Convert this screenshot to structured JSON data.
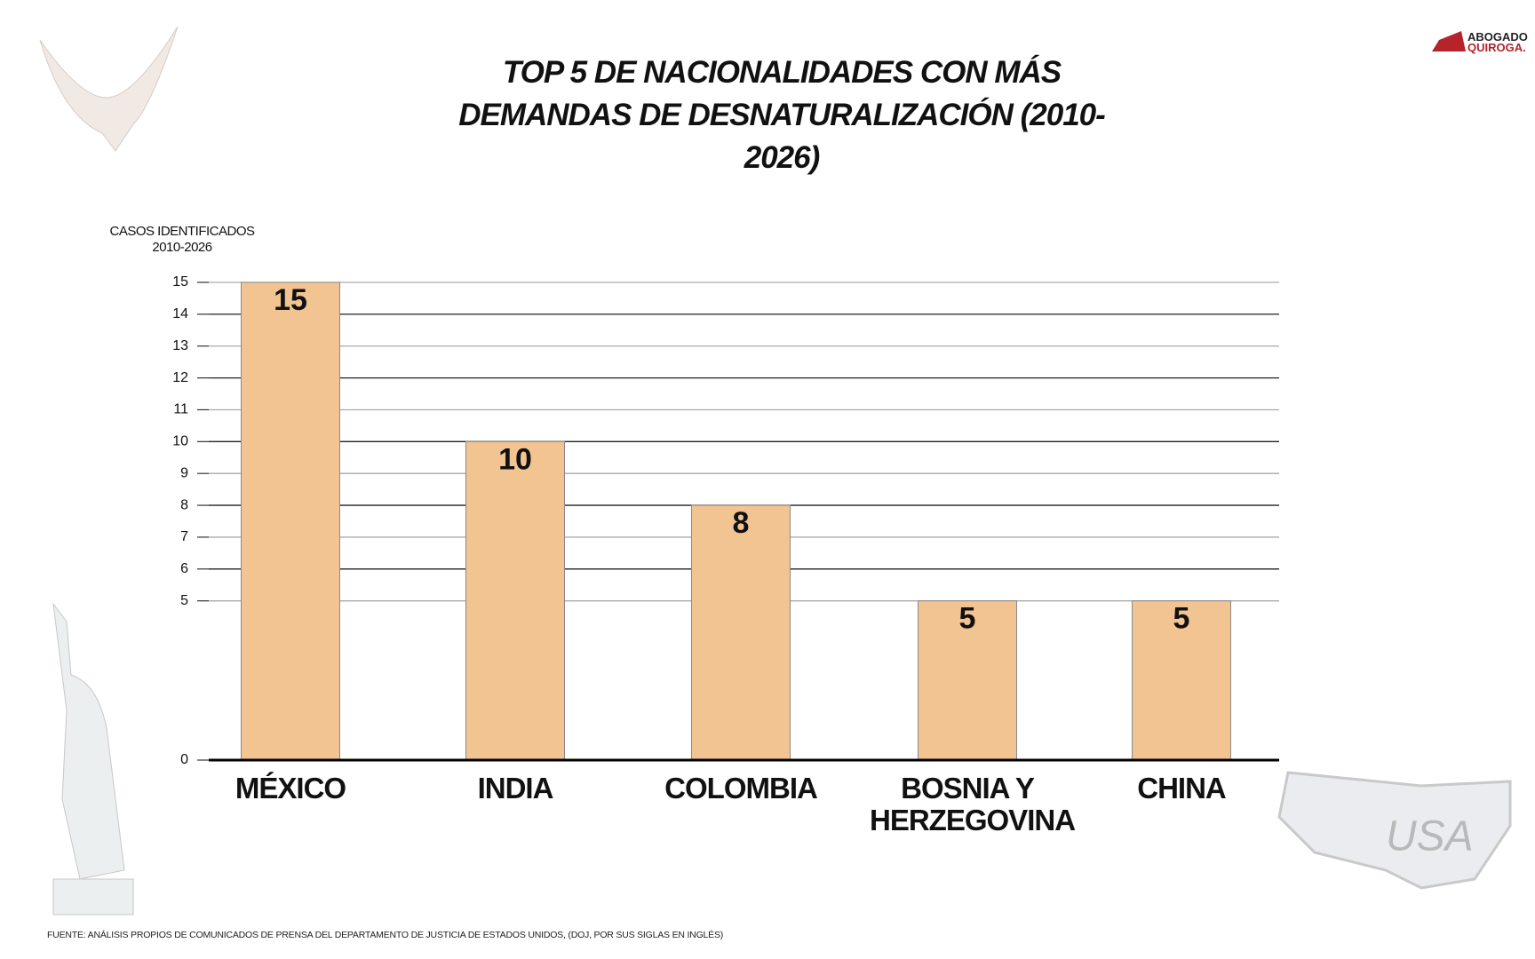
{
  "chart_data": {
    "type": "bar",
    "title": "TOP 5 DE NACIONALIDADES CON MÁS DEMANDAS DE DESNATURALIZACIÓN (2010-2026)",
    "y_label": "CASOS IDENTIFICADOS 2010-2026",
    "categories": [
      "MÉXICO",
      "INDIA",
      "COLOMBIA",
      "BOSNIA Y HERZEGOVINA",
      "CHINA"
    ],
    "values": [
      15,
      10,
      8,
      5,
      5
    ],
    "color": "#f2c492",
    "ylim": [
      0,
      15
    ],
    "yticks": [
      0,
      5,
      6,
      7,
      8,
      9,
      10,
      11,
      12,
      13,
      14,
      15
    ],
    "grid": true,
    "source": "FUENTE: ANÁLISIS PROPIOS DE COMUNICADOS DE PRENSA DEL DEPARTAMENTO DE JUSTICIA DE ESTADOS UNIDOS, (DOJ, POR SUS SIGLAS EN INGLÉS)"
  },
  "logo": {
    "line1": "ABOGADO",
    "line2": "QUIROGA."
  },
  "map_label": "USA"
}
